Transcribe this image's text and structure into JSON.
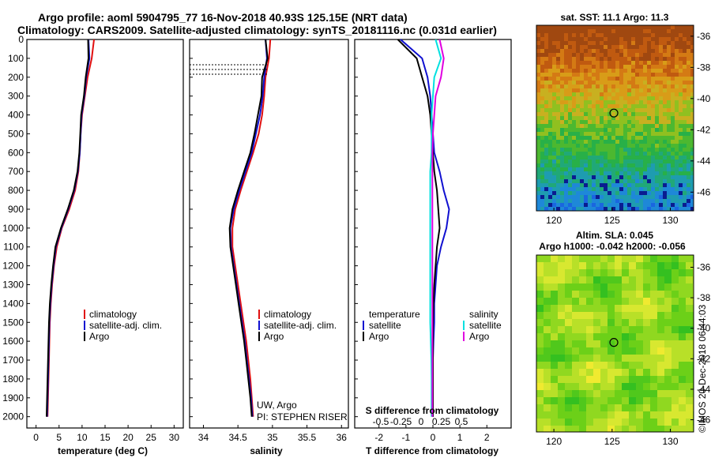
{
  "header": {
    "line1": "Argo profile: aoml 5904795_77 16-Nov-2018 40.93S 125.15E (NRT data)",
    "line2": "Climatology: CARS2009. Satellite-adjusted climatology: synTS_20181116.nc (0.031d earlier)"
  },
  "colors": {
    "climatology": "#e01010",
    "satellite": "#1010d0",
    "argo": "#000000",
    "sat_salinity": "#00e0e0",
    "argo_salinity": "#e000e0"
  },
  "depth_axis": {
    "range": [
      0,
      2060
    ],
    "ticks": [
      0,
      100,
      200,
      300,
      400,
      500,
      600,
      700,
      800,
      900,
      1000,
      1100,
      1200,
      1300,
      1400,
      1500,
      1600,
      1700,
      1800,
      1900,
      2000
    ]
  },
  "temperature_panel": {
    "xlabel": "temperature (deg C)",
    "xlim": [
      -2,
      32
    ],
    "xticks": [
      0,
      5,
      10,
      15,
      20,
      25,
      30
    ],
    "legend": [
      "climatology",
      "satellite-adj. clim.",
      "Argo"
    ]
  },
  "salinity_panel": {
    "xlabel": "salinity",
    "xlim": [
      33.8,
      36.1
    ],
    "xticks": [
      34,
      34.5,
      35,
      35.5,
      36
    ],
    "legend": [
      "climatology",
      "satellite-adj. clim.",
      "Argo"
    ],
    "annot1": "UW, Argo",
    "annot2": "PI: STEPHEN RISER"
  },
  "diff_panel": {
    "xlabel": "T difference from climatology",
    "xlabel2": "S difference from climatology",
    "t_xlim": [
      -2.9,
      2.9
    ],
    "t_xticks": [
      -2,
      -1,
      0,
      1,
      2
    ],
    "s_ticks": [
      -0.5,
      -0.25,
      0,
      0.25,
      0.5
    ],
    "s_tick_labels": [
      "-0.5",
      "-0.25",
      "0",
      "0.25",
      "0.5"
    ],
    "legend_t_title": "temperature",
    "legend_s_title": "salinity",
    "legend_t": [
      "satellite",
      "Argo"
    ],
    "legend_s": [
      "satellite",
      "Argo"
    ]
  },
  "map_sst": {
    "title": "sat. SST: 11.1 Argo: 11.3",
    "xlim": [
      118.5,
      132
    ],
    "ylim": [
      -47.2,
      -35.3
    ],
    "xticks": [
      120,
      125,
      130
    ],
    "yticks": [
      -36,
      -38,
      -40,
      -42,
      -44,
      -46
    ],
    "float_lon": 125.15,
    "float_lat": -40.93
  },
  "map_sla": {
    "title1": "Altim. SLA: 0.045",
    "title2": "Argo h1000: -0.042 h2000: -0.056",
    "xlim": [
      118.5,
      132
    ],
    "ylim": [
      -46.8,
      -35.2
    ],
    "xticks": [
      120,
      125,
      130
    ],
    "yticks": [
      -36,
      -38,
      -40,
      -42,
      -44,
      -46
    ],
    "float_lon": 125.15,
    "float_lat": -40.93
  },
  "footer": {
    "stamp": "©IMOS 20-Dec-2018 06:44:03"
  },
  "chart_data": [
    {
      "type": "line",
      "panel": "temperature",
      "xlabel": "temperature (deg C)",
      "ylabel": "",
      "xlim": [
        -2,
        32
      ],
      "ylim": [
        2060,
        0
      ],
      "series": [
        {
          "name": "climatology",
          "x": [
            12.6,
            12.1,
            11.2,
            10.6,
            10.0,
            9.7,
            9.5,
            9.2,
            8.5,
            7.2,
            5.6,
            4.5,
            3.9,
            3.5,
            3.2,
            3.0,
            2.9,
            2.8,
            2.7,
            2.6,
            2.5
          ],
          "y": [
            0,
            100,
            200,
            300,
            400,
            500,
            600,
            700,
            800,
            900,
            1000,
            1100,
            1200,
            1300,
            1400,
            1500,
            1600,
            1700,
            1800,
            1900,
            2000
          ]
        },
        {
          "name": "satellite-adj. clim.",
          "x": [
            11.4,
            11.6,
            10.9,
            10.5,
            9.9,
            9.7,
            9.5,
            9.1,
            8.3,
            7.0,
            5.5,
            4.3,
            3.8,
            3.4,
            3.1,
            2.9,
            2.8,
            2.7,
            2.6,
            2.5,
            2.4
          ],
          "y": [
            0,
            100,
            200,
            300,
            400,
            500,
            600,
            700,
            800,
            900,
            1000,
            1100,
            1200,
            1300,
            1400,
            1500,
            1600,
            1700,
            1800,
            1900,
            2000
          ]
        },
        {
          "name": "Argo",
          "x": [
            11.3,
            11.4,
            10.8,
            10.4,
            9.8,
            9.6,
            9.4,
            9.0,
            8.2,
            6.9,
            5.4,
            4.2,
            3.7,
            3.3,
            3.0,
            2.8,
            2.7,
            2.6,
            2.5,
            2.4,
            2.3
          ],
          "y": [
            0,
            100,
            200,
            300,
            400,
            500,
            600,
            700,
            800,
            900,
            1000,
            1100,
            1200,
            1300,
            1400,
            1500,
            1600,
            1700,
            1800,
            1900,
            2000
          ]
        }
      ]
    },
    {
      "type": "line",
      "panel": "salinity",
      "xlabel": "salinity",
      "ylabel": "",
      "xlim": [
        33.8,
        36.1
      ],
      "ylim": [
        2060,
        0
      ],
      "series": [
        {
          "name": "climatology",
          "x": [
            34.97,
            34.95,
            34.9,
            34.88,
            34.85,
            34.8,
            34.72,
            34.63,
            34.54,
            34.46,
            34.42,
            34.42,
            34.46,
            34.5,
            34.54,
            34.58,
            34.62,
            34.65,
            34.68,
            34.7,
            34.72
          ],
          "y": [
            0,
            100,
            200,
            300,
            400,
            500,
            600,
            700,
            800,
            900,
            1000,
            1100,
            1200,
            1300,
            1400,
            1500,
            1600,
            1700,
            1800,
            1900,
            2000
          ]
        },
        {
          "name": "satellite-adj. clim.",
          "x": [
            34.9,
            34.92,
            34.88,
            34.86,
            34.82,
            34.76,
            34.7,
            34.61,
            34.52,
            34.44,
            34.39,
            34.4,
            34.44,
            34.48,
            34.52,
            34.56,
            34.6,
            34.63,
            34.66,
            34.69,
            34.71
          ],
          "y": [
            0,
            100,
            200,
            300,
            400,
            500,
            600,
            700,
            800,
            900,
            1000,
            1100,
            1200,
            1300,
            1400,
            1500,
            1600,
            1700,
            1800,
            1900,
            2000
          ]
        },
        {
          "name": "Argo",
          "x": [
            34.9,
            34.93,
            34.85,
            34.84,
            34.79,
            34.74,
            34.68,
            34.59,
            34.5,
            34.42,
            34.38,
            34.39,
            34.43,
            34.47,
            34.51,
            34.55,
            34.59,
            34.62,
            34.65,
            34.68,
            34.7
          ],
          "y": [
            0,
            100,
            200,
            300,
            400,
            500,
            600,
            700,
            800,
            900,
            1000,
            1100,
            1200,
            1300,
            1400,
            1500,
            1600,
            1700,
            1800,
            1900,
            2000
          ]
        }
      ]
    },
    {
      "type": "line",
      "panel": "difference",
      "xlabel": "T difference from climatology",
      "ylabel": "",
      "xlim": [
        -2.9,
        2.9
      ],
      "ylim": [
        2060,
        0
      ],
      "series": [
        {
          "name": "temperature satellite",
          "x": [
            -1.2,
            -0.4,
            -0.2,
            -0.1,
            -0.05,
            0.0,
            0.05,
            0.25,
            0.4,
            0.6,
            0.5,
            0.3,
            0.15,
            0.1,
            0.05,
            0.05,
            0.02,
            0.0,
            0.0,
            0.0,
            0.0
          ],
          "y": [
            0,
            100,
            200,
            300,
            400,
            500,
            600,
            700,
            800,
            900,
            1000,
            1100,
            1200,
            1300,
            1400,
            1500,
            1600,
            1700,
            1800,
            1900,
            2000
          ]
        },
        {
          "name": "temperature Argo",
          "x": [
            -1.3,
            -0.6,
            -0.4,
            -0.2,
            -0.1,
            -0.05,
            0.0,
            0.05,
            0.15,
            0.2,
            0.25,
            0.15,
            0.1,
            0.05,
            0.02,
            0.0,
            0.0,
            0.0,
            0.0,
            0.0,
            0.0
          ],
          "y": [
            0,
            100,
            200,
            300,
            400,
            500,
            600,
            700,
            800,
            900,
            1000,
            1100,
            1200,
            1300,
            1400,
            1500,
            1600,
            1700,
            1800,
            1900,
            2000
          ]
        },
        {
          "name": "salinity satellite",
          "x": [
            0.1,
            0.3,
            0.05,
            0.0,
            -0.05,
            -0.05,
            -0.05,
            -0.1,
            -0.1,
            -0.1,
            -0.1,
            -0.1,
            -0.1,
            -0.1,
            -0.1,
            -0.1,
            -0.08,
            -0.06,
            -0.05,
            -0.05,
            -0.05
          ],
          "y": [
            0,
            100,
            200,
            300,
            400,
            500,
            600,
            700,
            800,
            900,
            1000,
            1100,
            1200,
            1300,
            1400,
            1500,
            1600,
            1700,
            1800,
            1900,
            2000
          ]
        },
        {
          "name": "salinity Argo",
          "x": [
            0.25,
            0.4,
            0.3,
            0.1,
            0.05,
            0.0,
            -0.02,
            -0.02,
            -0.02,
            -0.02,
            -0.02,
            -0.02,
            -0.02,
            -0.02,
            -0.02,
            -0.02,
            -0.02,
            -0.02,
            -0.02,
            -0.02,
            -0.02
          ],
          "y": [
            0,
            100,
            200,
            300,
            400,
            500,
            600,
            700,
            800,
            900,
            1000,
            1100,
            1200,
            1300,
            1400,
            1500,
            1600,
            1700,
            1800,
            1900,
            2000
          ]
        }
      ]
    },
    {
      "type": "heatmap",
      "panel": "sst-map",
      "title": "sat. SST: 11.1 Argo: 11.3",
      "xlim": [
        118.5,
        132
      ],
      "ylim": [
        -47.2,
        -35.3
      ],
      "marker": {
        "lon": 125.15,
        "lat": -40.93
      }
    },
    {
      "type": "heatmap",
      "panel": "sla-map",
      "title": "Altim. SLA: 0.045",
      "xlim": [
        118.5,
        132
      ],
      "ylim": [
        -46.8,
        -35.2
      ],
      "marker": {
        "lon": 125.15,
        "lat": -40.93
      }
    }
  ]
}
